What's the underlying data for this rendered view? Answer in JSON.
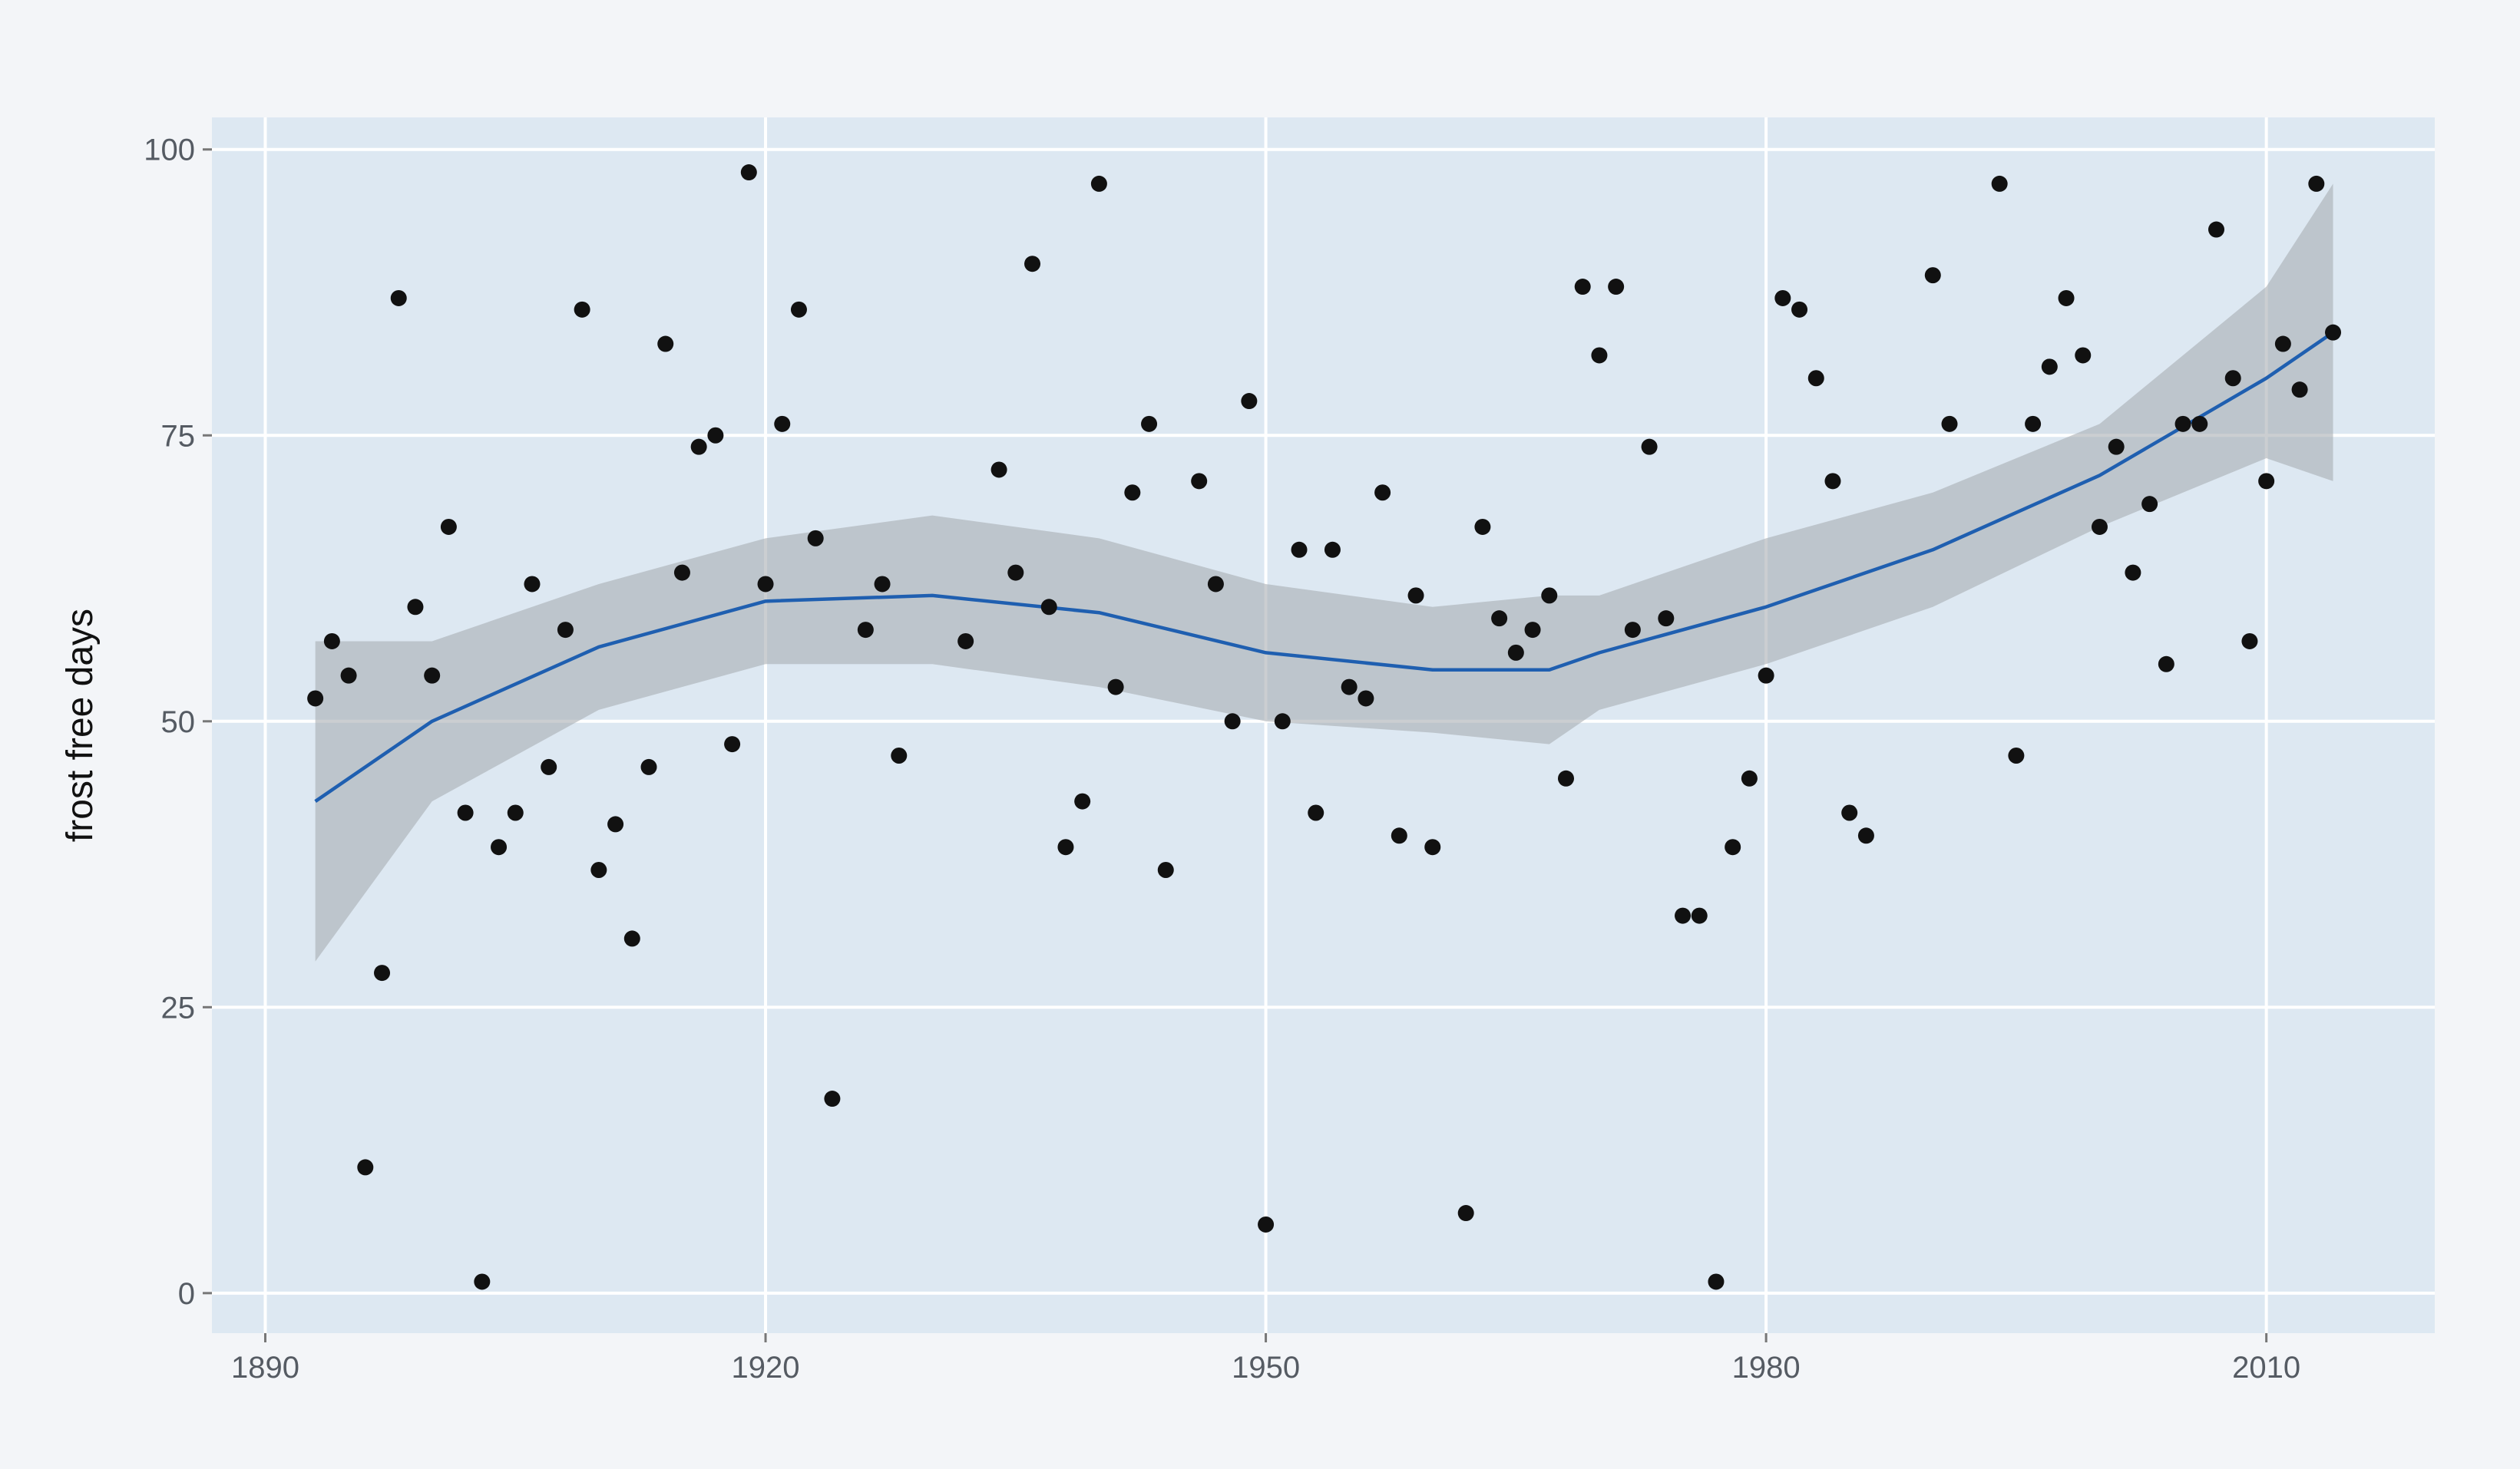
{
  "chart_data": {
    "type": "scatter",
    "y_label": "frost free days",
    "x": [
      1893,
      1894,
      1895,
      1896,
      1897,
      1898,
      1899,
      1900,
      1901,
      1902,
      1903,
      1904,
      1905,
      1906,
      1907,
      1908,
      1909,
      1910,
      1911,
      1912,
      1913,
      1914,
      1915,
      1916,
      1917,
      1918,
      1919,
      1920,
      1921,
      1922,
      1923,
      1924,
      1926,
      1927,
      1928,
      1932,
      1934,
      1935,
      1936,
      1937,
      1938,
      1939,
      1940,
      1941,
      1942,
      1943,
      1944,
      1946,
      1947,
      1948,
      1949,
      1950,
      1951,
      1952,
      1953,
      1954,
      1955,
      1956,
      1957,
      1958,
      1959,
      1960,
      1962,
      1963,
      1964,
      1965,
      1966,
      1967,
      1968,
      1969,
      1970,
      1971,
      1972,
      1973,
      1974,
      1975,
      1976,
      1977,
      1978,
      1979,
      1980,
      1981,
      1982,
      1983,
      1984,
      1985,
      1986,
      1990,
      1991,
      1994,
      1995,
      1996,
      1997,
      1998,
      1999,
      2000,
      2001,
      2002,
      2003,
      2004,
      2005,
      2006,
      2007,
      2008,
      2009,
      2010,
      2011,
      2012,
      2013,
      2014
    ],
    "values": [
      52,
      57,
      54,
      11,
      28,
      87,
      60,
      54,
      67,
      42,
      1,
      39,
      42,
      62,
      46,
      58,
      86,
      37,
      41,
      31,
      46,
      83,
      63,
      74,
      75,
      48,
      98,
      62,
      76,
      86,
      66,
      17,
      58,
      62,
      47,
      57,
      72,
      63,
      90,
      60,
      39,
      43,
      97,
      53,
      70,
      76,
      37,
      71,
      62,
      50,
      78,
      6,
      50,
      65,
      42,
      65,
      53,
      52,
      70,
      40,
      61,
      39,
      7,
      67,
      59,
      56,
      58,
      61,
      45,
      88,
      82,
      88,
      58,
      74,
      59,
      33,
      33,
      1,
      39,
      45,
      54,
      87,
      86,
      80,
      71,
      42,
      40,
      89,
      76,
      97,
      47,
      76,
      81,
      87,
      82,
      67,
      74,
      63,
      69,
      55,
      76,
      76,
      93,
      80,
      57,
      71,
      83,
      79,
      97,
      84
    ],
    "color": "#111111",
    "smooth": {
      "x": [
        1893,
        1900,
        1910,
        1920,
        1930,
        1940,
        1950,
        1960,
        1967,
        1970,
        1980,
        1990,
        2000,
        2010,
        2014
      ],
      "values": [
        43,
        50,
        56.5,
        60.5,
        61,
        59.5,
        56,
        54.5,
        54.5,
        56,
        60,
        65,
        71.5,
        80,
        84
      ],
      "lower": [
        29,
        43,
        51,
        55,
        55,
        53,
        50,
        49,
        48,
        51,
        55,
        60,
        67,
        73,
        71
      ],
      "upper": [
        57,
        57,
        62,
        66,
        68,
        66,
        62,
        60,
        61,
        61,
        66,
        70,
        76,
        88,
        97
      ],
      "color": "#1f5fb0",
      "band_color": "#a9adb2"
    },
    "xlim": [
      1886.8,
      2020.1
    ],
    "ylim": [
      -3.5,
      102.8
    ],
    "xticks": [
      1890,
      1920,
      1950,
      1980,
      2010
    ],
    "yticks": [
      0,
      25,
      50,
      75,
      100
    ],
    "grid": true,
    "panel_color": "#dde8f2"
  }
}
